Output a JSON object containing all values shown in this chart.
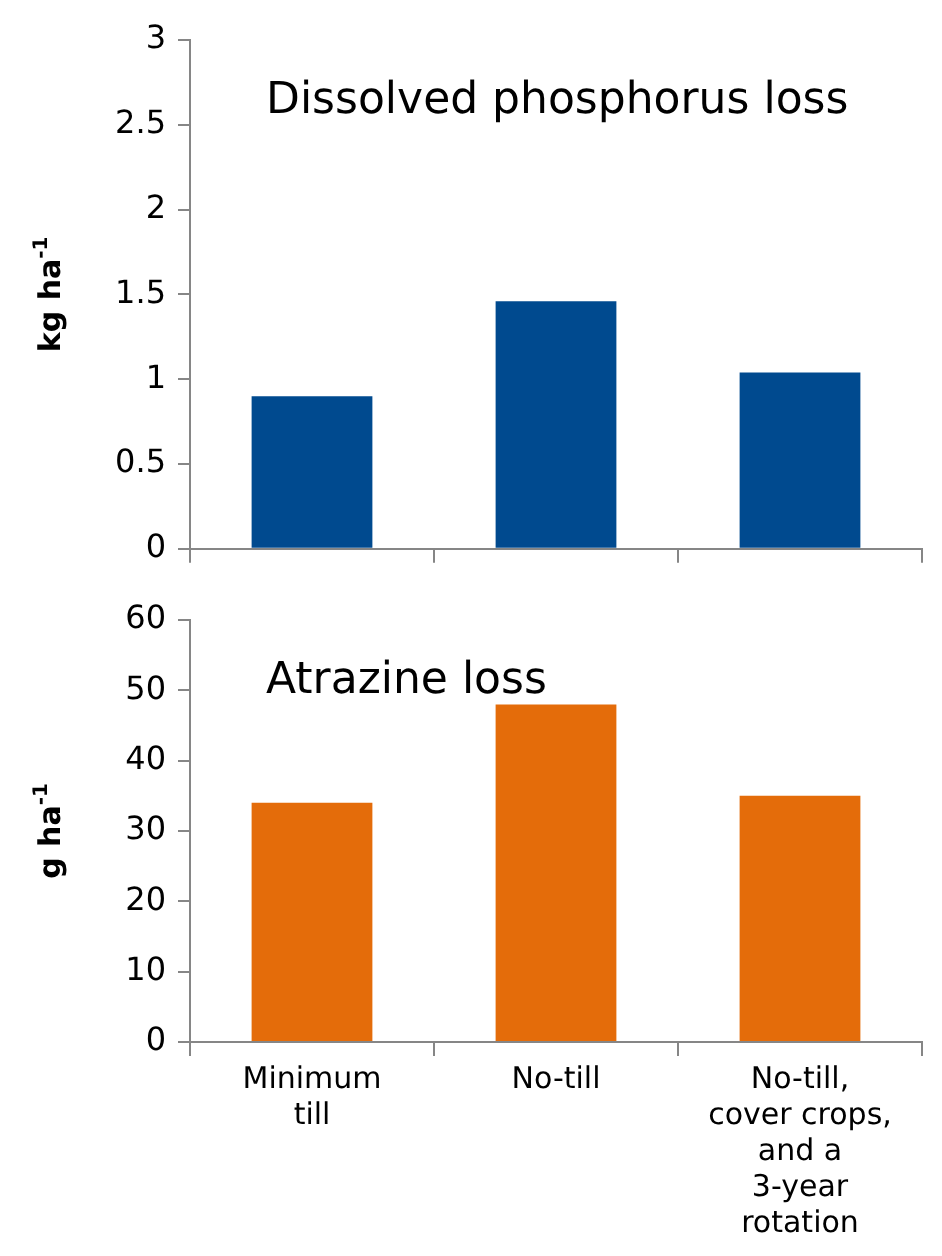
{
  "chart_data": [
    {
      "type": "bar",
      "title": "Dissolved phosphorus loss",
      "ylabel": "kg ha$^{-1}$",
      "categories": [
        null,
        null,
        null
      ],
      "values": [
        0.9,
        1.46,
        1.04
      ],
      "color": "#004a8f",
      "ylim": [
        0,
        3
      ],
      "yticks": [
        0,
        0.5,
        1,
        1.5,
        2,
        2.5,
        3
      ],
      "tick_labels": "y"
    },
    {
      "type": "bar",
      "title": "Atrazine loss",
      "ylabel": "g ha$^{-1}$",
      "categories": [
        "Minimum till",
        "No-till",
        "No-till, cover crops, and a 3-year rotation"
      ],
      "values": [
        34,
        48,
        35
      ],
      "color": "#e46c0a",
      "ylim": [
        0,
        60
      ],
      "yticks": [
        0,
        10,
        20,
        30,
        40,
        50,
        60
      ]
    }
  ]
}
